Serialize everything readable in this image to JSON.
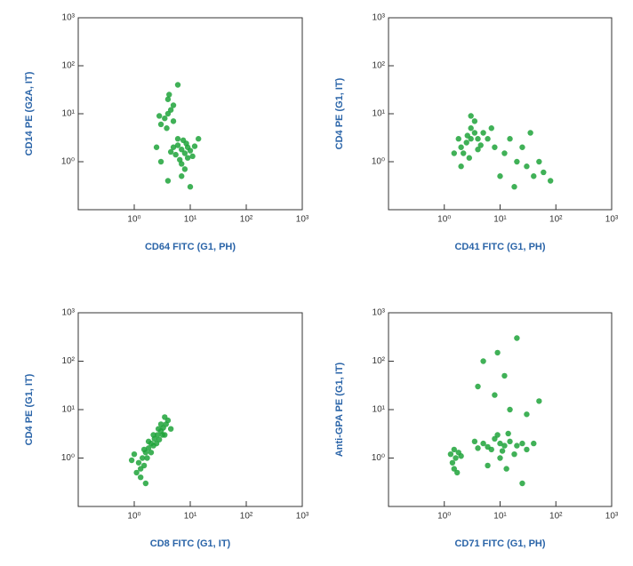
{
  "chart_data": [
    {
      "type": "scatter",
      "x_label": "CD64 FITC (G1, PH)",
      "y_label": "CD14 PE (G2A, IT)",
      "log_scale": true,
      "grid": false,
      "xlim": [
        0.1,
        1000
      ],
      "ylim": [
        0.1,
        1000
      ],
      "xticks": [
        {
          "value": 1,
          "label": "10⁰"
        },
        {
          "value": 10,
          "label": "10¹"
        },
        {
          "value": 100,
          "label": "10²"
        },
        {
          "value": 1000,
          "label": "10³"
        }
      ],
      "yticks": [
        {
          "value": 1,
          "label": "10⁰"
        },
        {
          "value": 10,
          "label": "10¹"
        },
        {
          "value": 100,
          "label": "10²"
        },
        {
          "value": 1000,
          "label": "10³"
        }
      ],
      "series": [
        {
          "color": "#1fa33a",
          "x": [
            7,
            6,
            8,
            9,
            5.5,
            7.5,
            10,
            6.5,
            8.5,
            5,
            11,
            7,
            6,
            9,
            12,
            4.5,
            7,
            8,
            4,
            3.5,
            4.5,
            3,
            5,
            4,
            3.8,
            5,
            2.8,
            4.2,
            3,
            14,
            2.5,
            6,
            4,
            10
          ],
          "values": [
            1.8,
            2.2,
            1.5,
            2,
            1.4,
            2.8,
            1.7,
            1.1,
            2.4,
            2,
            1.3,
            0.9,
            3,
            1.2,
            2.1,
            1.6,
            0.5,
            0.7,
            10,
            8,
            12,
            6,
            15,
            20,
            5,
            7,
            9,
            25,
            1,
            3,
            2,
            40,
            0.4,
            0.3
          ]
        }
      ]
    },
    {
      "type": "scatter",
      "x_label": "CD41 FITC (G1, PH)",
      "y_label": "CD4 PE (G1, IT)",
      "log_scale": true,
      "grid": false,
      "xlim": [
        0.1,
        1000
      ],
      "ylim": [
        0.1,
        1000
      ],
      "xticks": [
        {
          "value": 1,
          "label": "10⁰"
        },
        {
          "value": 10,
          "label": "10¹"
        },
        {
          "value": 100,
          "label": "10²"
        },
        {
          "value": 1000,
          "label": "10³"
        }
      ],
      "yticks": [
        {
          "value": 1,
          "label": "10⁰"
        },
        {
          "value": 10,
          "label": "10¹"
        },
        {
          "value": 100,
          "label": "10²"
        },
        {
          "value": 1000,
          "label": "10³"
        }
      ],
      "series": [
        {
          "color": "#1fa33a",
          "x": [
            3,
            2.5,
            3.5,
            2,
            4,
            3,
            2.2,
            4.5,
            2.8,
            3.5,
            1.8,
            5,
            2,
            4,
            6,
            1.5,
            3,
            2.6,
            8,
            12,
            20,
            30,
            15,
            40,
            25,
            60,
            10,
            35,
            50,
            80,
            18,
            7
          ],
          "values": [
            3,
            2.5,
            4,
            2,
            3,
            5,
            1.5,
            2.2,
            1.2,
            7,
            3,
            4,
            0.8,
            1.8,
            3,
            1.5,
            9,
            3.5,
            2,
            1.5,
            1,
            0.8,
            3,
            0.5,
            2,
            0.6,
            0.5,
            4,
            1,
            0.4,
            0.3,
            5
          ]
        }
      ]
    },
    {
      "type": "scatter",
      "x_label": "CD8 FITC (G1, IT)",
      "y_label": "CD4 PE (G1, IT)",
      "log_scale": true,
      "grid": false,
      "xlim": [
        0.1,
        1000
      ],
      "ylim": [
        0.1,
        1000
      ],
      "xticks": [
        {
          "value": 1,
          "label": "10⁰"
        },
        {
          "value": 10,
          "label": "10¹"
        },
        {
          "value": 100,
          "label": "10²"
        },
        {
          "value": 1000,
          "label": "10³"
        }
      ],
      "yticks": [
        {
          "value": 1,
          "label": "10⁰"
        },
        {
          "value": 10,
          "label": "10¹"
        },
        {
          "value": 100,
          "label": "10²"
        },
        {
          "value": 1000,
          "label": "10³"
        }
      ],
      "series": [
        {
          "color": "#1fa33a",
          "x": [
            1.2,
            1.4,
            1.6,
            1.8,
            2,
            2.3,
            2.6,
            3,
            3.3,
            3.7,
            4,
            1.1,
            1.3,
            1.5,
            1.7,
            2,
            2.2,
            2.5,
            2.8,
            3.2,
            1.5,
            1.8,
            2.2,
            2.7,
            3,
            3.5,
            1.3,
            0.9,
            1,
            1.6,
            4.5,
            3.5
          ],
          "values": [
            0.8,
            1,
            1.3,
            1.6,
            2,
            2.5,
            3,
            3.6,
            4.2,
            5,
            6,
            0.5,
            0.6,
            0.7,
            1,
            1.3,
            1.8,
            2,
            2.4,
            3,
            1.5,
            2.2,
            3,
            4,
            5,
            7,
            0.4,
            0.9,
            1.2,
            0.3,
            4,
            3
          ]
        }
      ]
    },
    {
      "type": "scatter",
      "x_label": "CD71 FITC (G1, PH)",
      "y_label": "Anti-GPA PE (G1, IT)",
      "log_scale": true,
      "grid": false,
      "xlim": [
        0.1,
        1000
      ],
      "ylim": [
        0.1,
        1000
      ],
      "xticks": [
        {
          "value": 1,
          "label": "10⁰"
        },
        {
          "value": 10,
          "label": "10¹"
        },
        {
          "value": 100,
          "label": "10²"
        },
        {
          "value": 1000,
          "label": "10³"
        }
      ],
      "yticks": [
        {
          "value": 1,
          "label": "10⁰"
        },
        {
          "value": 10,
          "label": "10¹"
        },
        {
          "value": 100,
          "label": "10²"
        },
        {
          "value": 1000,
          "label": "10³"
        }
      ],
      "series": [
        {
          "color": "#1fa33a",
          "x": [
            1.6,
            1.4,
            1.8,
            1.5,
            2,
            1.3,
            1.7,
            1.5,
            10,
            8,
            12,
            6,
            15,
            5,
            20,
            7,
            9,
            11,
            25,
            4,
            30,
            14,
            3.5,
            18,
            10,
            40,
            6,
            13,
            8,
            12,
            5,
            20,
            15,
            30,
            9,
            4,
            50,
            25
          ],
          "values": [
            1,
            0.8,
            1.3,
            0.6,
            1.1,
            1.2,
            0.5,
            1.5,
            2,
            2.5,
            1.8,
            1.7,
            2.2,
            2,
            1.8,
            1.5,
            3,
            1.4,
            2,
            1.6,
            1.5,
            3.2,
            2.2,
            1.2,
            1,
            2,
            0.7,
            0.6,
            20,
            50,
            100,
            300,
            10,
            8,
            150,
            30,
            15,
            0.3
          ]
        }
      ]
    }
  ]
}
